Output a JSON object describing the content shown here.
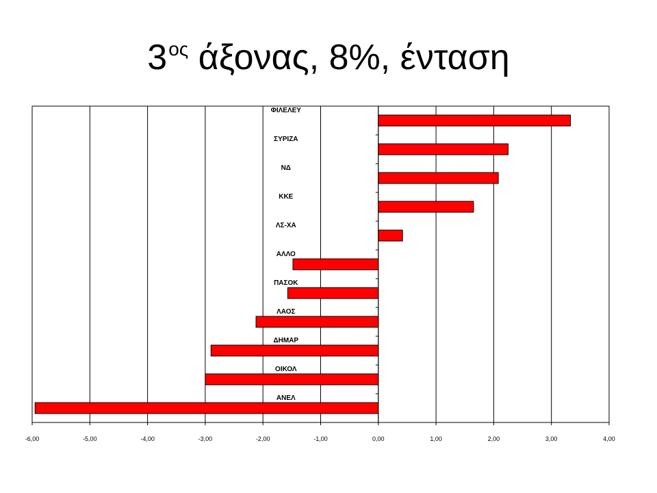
{
  "title": {
    "prefix": "3",
    "sup": "ος",
    "rest": " άξονας, 8%, ένταση"
  },
  "chart_data": {
    "type": "bar",
    "orientation": "horizontal",
    "title": "",
    "xlabel": "",
    "ylabel": "",
    "categories": [
      "ΦΙΛΕΛΕΥ",
      "ΣΥΡΙΖΑ",
      "ΝΔ",
      "ΚΚΕ",
      "ΛΣ-ΧΑ",
      "ΑΛΛΟ",
      "ΠΑΣΟΚ",
      "ΛΑΟΣ",
      "ΔΗΜΑΡ",
      "ΟΙΚΟΛ",
      "ΑΝΕΛ"
    ],
    "values": [
      3.33,
      2.25,
      2.08,
      1.65,
      0.42,
      -1.48,
      -1.57,
      -2.12,
      -2.9,
      -3.0,
      -5.95
    ],
    "xlim": [
      -6,
      4
    ],
    "x_ticks": [
      -6,
      -5,
      -4,
      -3,
      -2,
      -1,
      0,
      1,
      2,
      3,
      4
    ],
    "x_tick_labels": [
      "-6,00",
      "-5,00",
      "-4,00",
      "-3,00",
      "-2,00",
      "-1,00",
      "0,00",
      "1,00",
      "2,00",
      "3,00",
      "4,00"
    ],
    "grid": "vertical",
    "legend": "none",
    "bar_color": "#ff0000",
    "bar_edge_color": "#000000"
  }
}
